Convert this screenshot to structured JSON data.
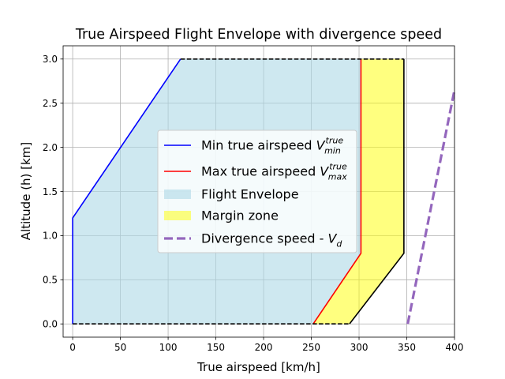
{
  "chart_data": {
    "type": "area",
    "title": "True Airspeed Flight Envelope with divergence speed",
    "xlabel": "True airspeed [km/h]",
    "ylabel": "Altitude (h) [km]",
    "xlim": [
      -10,
      400
    ],
    "ylim": [
      -0.15,
      3.15
    ],
    "xticks": [
      0,
      50,
      100,
      150,
      200,
      250,
      300,
      350,
      400
    ],
    "yticks": [
      0.0,
      0.5,
      1.0,
      1.5,
      2.0,
      2.5,
      3.0
    ],
    "xtick_labels": [
      "0",
      "50",
      "100",
      "150",
      "200",
      "250",
      "300",
      "350",
      "400"
    ],
    "ytick_labels": [
      "0.0",
      "0.5",
      "1.0",
      "1.5",
      "2.0",
      "2.5",
      "3.0"
    ],
    "grid": true,
    "legend_position": "center",
    "series": [
      {
        "name": "Min true airspeed",
        "legend_math": {
          "base": "V",
          "sup": "true",
          "sub": "min"
        },
        "kind": "line",
        "color": "#0000ff",
        "style": "solid",
        "x": [
          0,
          0,
          113
        ],
        "y": [
          0.0,
          1.2,
          3.0
        ]
      },
      {
        "name": "Max true airspeed",
        "legend_math": {
          "base": "V",
          "sup": "true",
          "sub": "max"
        },
        "kind": "line",
        "color": "#ff0000",
        "style": "solid",
        "x": [
          252,
          302,
          302
        ],
        "y": [
          0.0,
          0.8,
          3.0
        ]
      },
      {
        "name": "Flight Envelope",
        "kind": "fill",
        "color": "#add8e6",
        "opacity": 0.6,
        "x": [
          0,
          0,
          113,
          302,
          302,
          252
        ],
        "y": [
          0.0,
          1.2,
          3.0,
          3.0,
          0.8,
          0.0
        ]
      },
      {
        "name": "Margin zone",
        "kind": "fill",
        "color": "#ffff00",
        "opacity": 0.5,
        "x": [
          252,
          302,
          302,
          347,
          347,
          290
        ],
        "y": [
          0.0,
          0.8,
          3.0,
          3.0,
          0.8,
          0.0
        ]
      },
      {
        "name": "Divergence speed -",
        "legend_math": {
          "base": "V",
          "sub": "d"
        },
        "kind": "line",
        "color": "#9467bd",
        "style": "dashed",
        "x": [
          351,
          400
        ],
        "y": [
          0.0,
          2.65
        ]
      }
    ],
    "extra_lines": [
      {
        "kind": "line",
        "color": "#000000",
        "style": "solid",
        "x": [
          290,
          347,
          347
        ],
        "y": [
          0.0,
          0.8,
          3.0
        ]
      },
      {
        "kind": "line",
        "color": "#000000",
        "style": "dashed",
        "x": [
          0,
          290
        ],
        "y": [
          0.0,
          0.0
        ]
      },
      {
        "kind": "line",
        "color": "#000000",
        "style": "dashed",
        "x": [
          113,
          347
        ],
        "y": [
          3.0,
          3.0
        ]
      }
    ]
  }
}
